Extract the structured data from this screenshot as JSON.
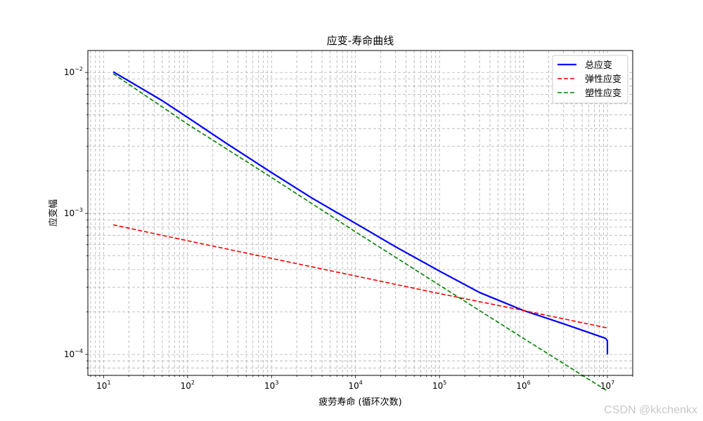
{
  "chart_data": {
    "type": "line",
    "title": "应变-寿命曲线",
    "xlabel": "疲劳寿命 (循环次数)",
    "ylabel": "应变幅",
    "x_scale": "log",
    "y_scale": "log",
    "xlim": [
      6.5,
      20000000
    ],
    "ylim": [
      7.1e-05,
      0.0143
    ],
    "x_ticks": [
      {
        "value": 10,
        "base": "10",
        "exp": "1"
      },
      {
        "value": 100,
        "base": "10",
        "exp": "2"
      },
      {
        "value": 1000,
        "base": "10",
        "exp": "3"
      },
      {
        "value": 10000,
        "base": "10",
        "exp": "4"
      },
      {
        "value": 100000,
        "base": "10",
        "exp": "5"
      },
      {
        "value": 1000000,
        "base": "10",
        "exp": "6"
      },
      {
        "value": 10000000,
        "base": "10",
        "exp": "7"
      }
    ],
    "y_ticks": [
      {
        "value": 0.01,
        "base": "10",
        "exp": "−2"
      },
      {
        "value": 0.001,
        "base": "10",
        "exp": "−3"
      },
      {
        "value": 0.0001,
        "base": "10",
        "exp": "−4"
      }
    ],
    "grid": true,
    "legend_position": "top-right",
    "series": [
      {
        "name": "总应变",
        "color": "#0000ff",
        "style": "solid",
        "x": [
          13,
          20,
          50,
          100,
          300,
          1000,
          3000,
          10000,
          30000,
          100000,
          300000,
          1000000,
          3000000,
          9500000,
          10000000,
          10000000
        ],
        "y": [
          0.0101,
          0.0087,
          0.0063,
          0.0048,
          0.0031,
          0.00195,
          0.00129,
          0.00085,
          0.00058,
          0.00039,
          0.000275,
          0.000205,
          0.000165,
          0.00013,
          0.000125,
          0.0001
        ]
      },
      {
        "name": "弹性应变",
        "color": "#ff0000",
        "style": "dashed",
        "x": [
          13,
          100,
          1000,
          10000,
          100000,
          1000000,
          10000000
        ],
        "y": [
          0.00083,
          0.00064,
          0.00048,
          0.00036,
          0.00027,
          0.000205,
          0.000154
        ]
      },
      {
        "name": "塑性应变",
        "color": "#008000",
        "style": "dashed",
        "x": [
          13,
          100,
          1000,
          10000,
          100000,
          1000000,
          10000000
        ],
        "y": [
          0.0098,
          0.0043,
          0.0018,
          0.00074,
          0.00031,
          0.00013,
          5.5e-05
        ]
      }
    ]
  },
  "watermark": "CSDN @kkchenkx"
}
